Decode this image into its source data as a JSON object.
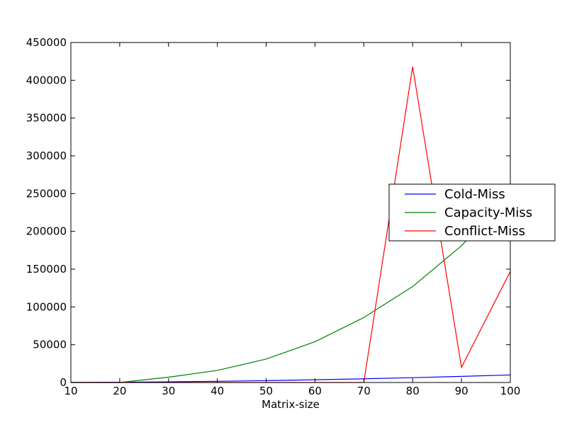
{
  "chart_data": {
    "type": "line",
    "title": "",
    "xlabel": "Matrix-size",
    "ylabel": "",
    "xlim": [
      10,
      100
    ],
    "ylim": [
      0,
      450000
    ],
    "x_ticks": [
      10,
      20,
      30,
      40,
      50,
      60,
      70,
      80,
      90,
      100
    ],
    "y_ticks": [
      0,
      50000,
      100000,
      150000,
      200000,
      250000,
      300000,
      350000,
      400000,
      450000
    ],
    "grid": false,
    "legend_position": "right",
    "x": [
      10,
      20,
      30,
      40,
      50,
      60,
      70,
      80,
      90,
      100
    ],
    "series": [
      {
        "name": "Cold-Miss",
        "color": "#0000ff",
        "values": [
          100,
          400,
          900,
          1600,
          2500,
          3600,
          4900,
          6400,
          8100,
          10000
        ]
      },
      {
        "name": "Capacity-Miss",
        "color": "#008000",
        "values": [
          0,
          0,
          7000,
          16000,
          31000,
          54000,
          86000,
          127000,
          181000,
          250000
        ]
      },
      {
        "name": "Conflict-Miss",
        "color": "#ff0000",
        "values": [
          0,
          0,
          0,
          0,
          0,
          0,
          0,
          418000,
          20000,
          147000
        ]
      }
    ]
  }
}
